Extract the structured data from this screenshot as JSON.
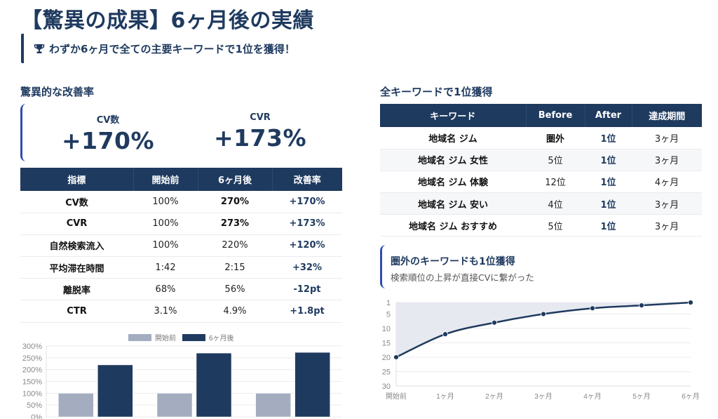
{
  "header": {
    "title": "【驚異の成果】6ヶ月後の実績",
    "subtitle": "わずか6ヶ月で全ての主要キーワードで1位を獲得！",
    "subtitle_icon": "trophy-icon"
  },
  "left": {
    "section_title": "驚異的な改善率",
    "kpis": [
      {
        "label": "CV数",
        "value": "+170%"
      },
      {
        "label": "CVR",
        "value": "+173%"
      }
    ],
    "table": {
      "headers": [
        "指標",
        "開始前",
        "6ヶ月後",
        "改善率"
      ],
      "rows": [
        [
          "CV数",
          "100%",
          "270%",
          "+170%"
        ],
        [
          "CVR",
          "100%",
          "273%",
          "+173%"
        ],
        [
          "自然検索流入",
          "100%",
          "220%",
          "+120%"
        ],
        [
          "平均滞在時間",
          "1:42",
          "2:15",
          "+32%"
        ],
        [
          "離脱率",
          "68%",
          "56%",
          "-12pt"
        ],
        [
          "CTR",
          "3.1%",
          "4.9%",
          "+1.8pt"
        ]
      ]
    }
  },
  "right": {
    "section_title": "全キーワードで1位獲得",
    "table": {
      "headers": [
        "キーワード",
        "Before",
        "After",
        "達成期間"
      ],
      "rows": [
        [
          "地域名 ジム",
          "圏外",
          "1位",
          "3ヶ月"
        ],
        [
          "地域名 ジム 女性",
          "5位",
          "1位",
          "3ヶ月"
        ],
        [
          "地域名 ジム 体験",
          "12位",
          "1位",
          "4ヶ月"
        ],
        [
          "地域名 ジム 安い",
          "4位",
          "1位",
          "3ヶ月"
        ],
        [
          "地域名 ジム おすすめ",
          "5位",
          "1位",
          "3ヶ月"
        ]
      ]
    },
    "note": {
      "heading": "圏外のキーワードも1位獲得",
      "text": "検索順位の上昇が直接CVに繋がった"
    }
  },
  "colors": {
    "primary": "#1f3a5f",
    "accent_border": "#2f4db0",
    "bar_before": "#a3adbf",
    "bar_after": "#1f3a5f",
    "area_fill": "#e6e9f0"
  },
  "chart_data": [
    {
      "type": "bar",
      "title": "",
      "categories": [
        "",
        "",
        ""
      ],
      "series": [
        {
          "name": "開始前",
          "values": [
            100,
            100,
            100
          ]
        },
        {
          "name": "6ヶ月後",
          "values": [
            220,
            270,
            273
          ]
        }
      ],
      "ylim": [
        0,
        300
      ],
      "yticks": [
        "0%",
        "50%",
        "100%",
        "150%",
        "200%",
        "250%",
        "300%"
      ],
      "ytick_values": [
        0,
        50,
        100,
        150,
        200,
        250,
        300
      ],
      "legend": "top-center",
      "grid": true
    },
    {
      "type": "area",
      "title": "",
      "x": [
        "開始前",
        "1ヶ月",
        "2ヶ月",
        "3ヶ月",
        "4ヶ月",
        "5ヶ月",
        "6ヶ月"
      ],
      "series": [
        {
          "name": "順位",
          "values": [
            20,
            12,
            8,
            5,
            3,
            2,
            1
          ]
        }
      ],
      "ylim": [
        1,
        30
      ],
      "y_reversed": true,
      "yticks": [
        "1",
        "5",
        "10",
        "15",
        "20",
        "25",
        "30"
      ],
      "ytick_values": [
        1,
        5,
        10,
        15,
        20,
        25,
        30
      ],
      "grid": true
    }
  ]
}
